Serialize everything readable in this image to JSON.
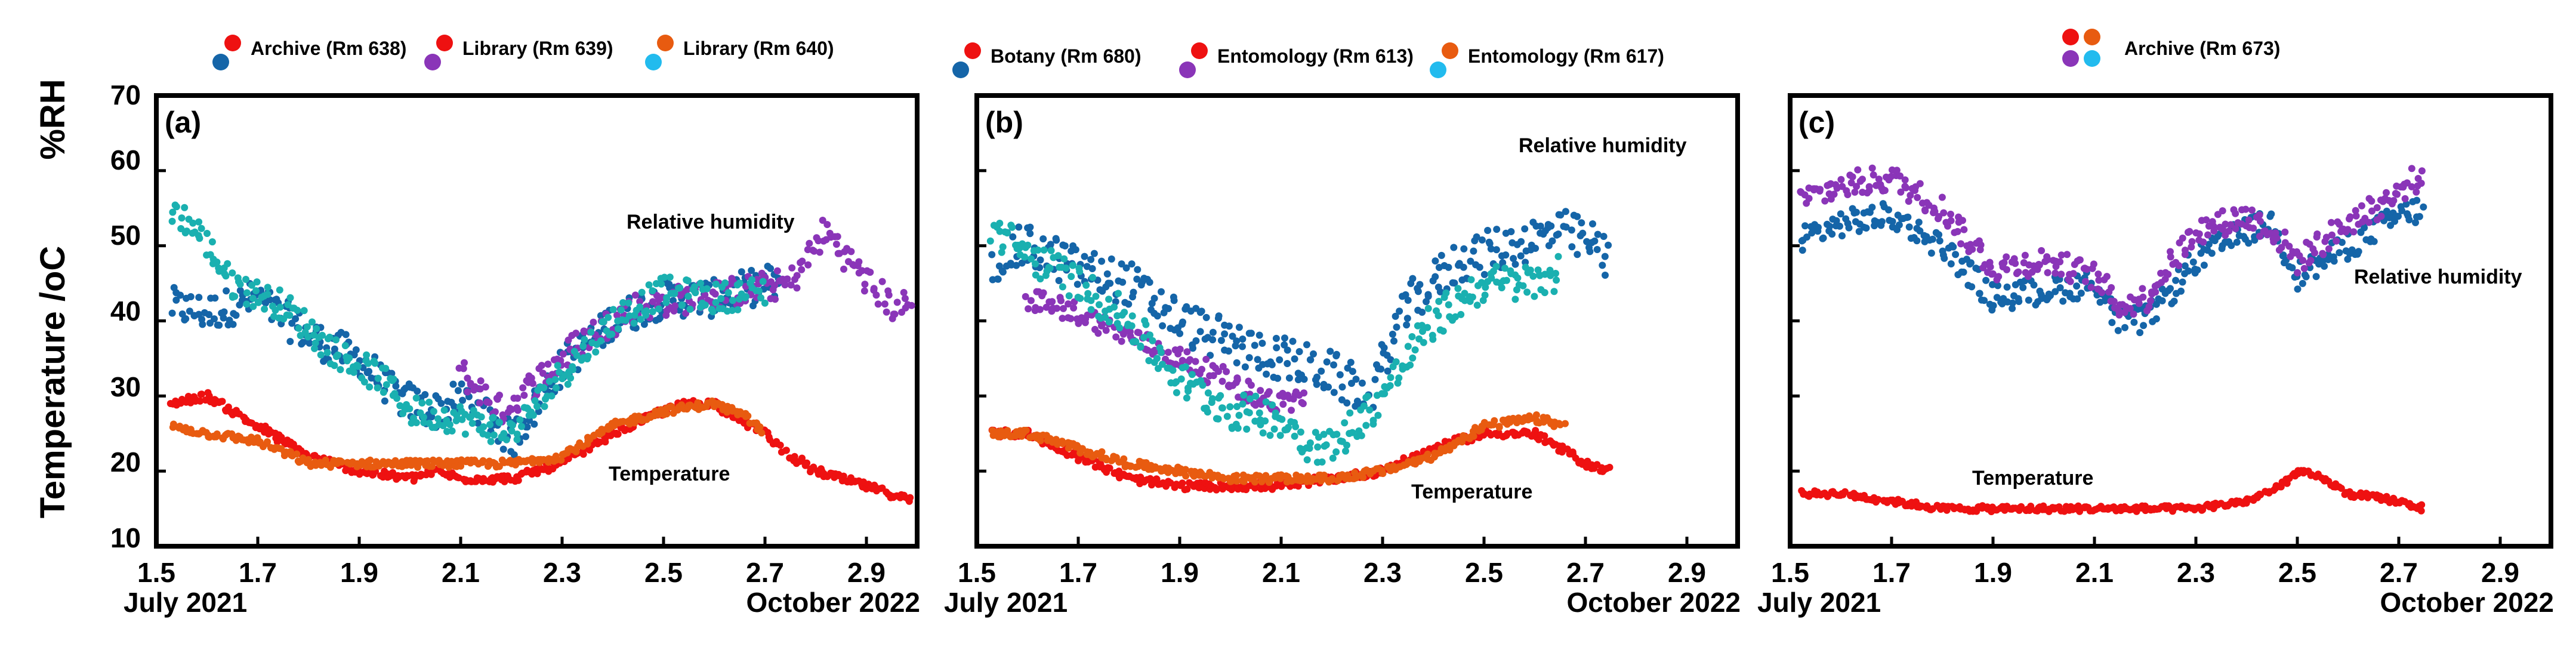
{
  "colors": {
    "red": "#ee1111",
    "orange": "#e85b10",
    "teal": "#1ab0b0",
    "cyan": "#22bbee",
    "navy": "#1565a8",
    "purple": "#8a35b8"
  },
  "y_axis": {
    "rh_title": "%RH",
    "temp_title": "Temperature /",
    "temp_unit": "oC",
    "ylim": [
      10,
      70
    ],
    "ticks": [
      "10",
      "20",
      "30",
      "40",
      "50",
      "60",
      "70"
    ]
  },
  "chart_data": [
    {
      "type": "scatter",
      "panel_label": "(a)",
      "xlim": [
        1.5,
        3.0
      ],
      "ylim": [
        10,
        70
      ],
      "x_ticks": [
        "1.5",
        "1.7",
        "1.9",
        "2.1",
        "2.3",
        "2.5",
        "2.7",
        "2.9"
      ],
      "date_start": "July  2021",
      "date_end": "October 2022",
      "legend": [
        {
          "label": "Archive (Rm 638)",
          "temp_color": "#ee1111",
          "rh_color": "#1565a8"
        },
        {
          "label": "Library (Rm 639)",
          "temp_color": "#ee1111",
          "rh_color": "#8a35b8"
        },
        {
          "label": "Library (Rm 640)",
          "temp_color": "#e85b10",
          "rh_color": "#22bbee"
        }
      ],
      "annotations": {
        "rh": "Relative humidity",
        "temp": "Temperature"
      },
      "series": [
        {
          "name": "Archive (Rm 638) RH",
          "color": "#1565a8",
          "jitter": 2.5,
          "points": [
            [
              1.53,
              42
            ],
            [
              1.6,
              41
            ],
            [
              1.7,
              43
            ],
            [
              1.8,
              38
            ],
            [
              1.9,
              35
            ],
            [
              1.97,
              30
            ],
            [
              2.05,
              28
            ],
            [
              2.12,
              30
            ],
            [
              2.2,
              24
            ],
            [
              2.3,
              34
            ],
            [
              2.4,
              40
            ],
            [
              2.5,
              43
            ],
            [
              2.6,
              43
            ],
            [
              2.7,
              45
            ],
            [
              2.73,
              45
            ]
          ]
        },
        {
          "name": "Library (Rm 639) RH",
          "color": "#8a35b8",
          "jitter": 2,
          "points": [
            [
              2.1,
              33
            ],
            [
              2.18,
              28
            ],
            [
              2.25,
              32
            ],
            [
              2.35,
              38
            ],
            [
              2.45,
              42
            ],
            [
              2.55,
              43
            ],
            [
              2.65,
              44
            ],
            [
              2.75,
              45
            ],
            [
              2.82,
              52
            ],
            [
              2.88,
              47
            ],
            [
              2.95,
              42
            ],
            [
              2.99,
              42
            ]
          ]
        },
        {
          "name": "Library (Rm 640) RH",
          "color": "#1ab0b0",
          "jitter": 2,
          "points": [
            [
              1.53,
              55
            ],
            [
              1.58,
              52
            ],
            [
              1.65,
              45
            ],
            [
              1.75,
              42
            ],
            [
              1.85,
              36
            ],
            [
              1.95,
              32
            ],
            [
              2.0,
              28
            ],
            [
              2.1,
              27
            ],
            [
              2.2,
              25
            ],
            [
              2.3,
              33
            ],
            [
              2.4,
              40
            ],
            [
              2.5,
              44
            ],
            [
              2.6,
              43
            ],
            [
              2.7,
              44
            ]
          ]
        },
        {
          "name": "Library Temperature",
          "color": "#ee1111",
          "jitter": 0.5,
          "points": [
            [
              1.53,
              29
            ],
            [
              1.6,
              30
            ],
            [
              1.65,
              28
            ],
            [
              1.7,
              26
            ],
            [
              1.8,
              22
            ],
            [
              1.9,
              20
            ],
            [
              2.0,
              19
            ],
            [
              2.05,
              20
            ],
            [
              2.1,
              19
            ],
            [
              2.2,
              19
            ],
            [
              2.3,
              21
            ],
            [
              2.4,
              25
            ],
            [
              2.5,
              28
            ],
            [
              2.55,
              29
            ],
            [
              2.6,
              29
            ],
            [
              2.7,
              25
            ],
            [
              2.75,
              22
            ],
            [
              2.8,
              20
            ],
            [
              2.9,
              18
            ],
            [
              2.99,
              16
            ]
          ]
        },
        {
          "name": "Library (Rm 640) Temperature",
          "color": "#e85b10",
          "jitter": 0.5,
          "points": [
            [
              1.53,
              26
            ],
            [
              1.6,
              25
            ],
            [
              1.7,
              24
            ],
            [
              1.8,
              21
            ],
            [
              1.9,
              21
            ],
            [
              2.0,
              21
            ],
            [
              2.1,
              21
            ],
            [
              2.2,
              21
            ],
            [
              2.3,
              22
            ],
            [
              2.4,
              26
            ],
            [
              2.5,
              28
            ],
            [
              2.6,
              29
            ],
            [
              2.67,
              27
            ],
            [
              2.7,
              25
            ]
          ]
        }
      ]
    },
    {
      "type": "scatter",
      "panel_label": "(b)",
      "xlim": [
        1.5,
        3.0
      ],
      "ylim": [
        10,
        70
      ],
      "x_ticks": [
        "1.5",
        "1.7",
        "1.9",
        "2.1",
        "2.3",
        "2.5",
        "2.7",
        "2.9"
      ],
      "date_start": "July  2021",
      "date_end": "October 2022",
      "legend": [
        {
          "label": "Botany (Rm 680)",
          "temp_color": "#ee1111",
          "rh_color": "#1565a8"
        },
        {
          "label": "Entomology (Rm 613)",
          "temp_color": "#ee1111",
          "rh_color": "#8a35b8"
        },
        {
          "label": "Entomology (Rm 617)",
          "temp_color": "#e85b10",
          "rh_color": "#22bbee"
        }
      ],
      "annotations": {
        "rh": "Relative humidity",
        "temp": "Temperature"
      },
      "series": [
        {
          "name": "Botany (Rm 680) RH",
          "color": "#1565a8",
          "jitter": 3,
          "points": [
            [
              1.53,
              48
            ],
            [
              1.6,
              50
            ],
            [
              1.7,
              47
            ],
            [
              1.8,
              45
            ],
            [
              1.9,
              40
            ],
            [
              2.0,
              37
            ],
            [
              2.1,
              35
            ],
            [
              2.2,
              33
            ],
            [
              2.27,
              30
            ],
            [
              2.35,
              42
            ],
            [
              2.45,
              48
            ],
            [
              2.55,
              50
            ],
            [
              2.65,
              52
            ],
            [
              2.72,
              50
            ],
            [
              2.75,
              48
            ]
          ]
        },
        {
          "name": "Entomology (Rm 613) RH",
          "color": "#8a35b8",
          "jitter": 1.5,
          "points": [
            [
              1.6,
              43
            ],
            [
              1.7,
              41
            ],
            [
              1.8,
              38
            ],
            [
              1.9,
              35
            ],
            [
              2.0,
              32
            ],
            [
              2.05,
              30
            ],
            [
              2.1,
              29
            ],
            [
              2.15,
              30
            ]
          ]
        },
        {
          "name": "Entomology (Rm 617) RH",
          "color": "#1ab0b0",
          "jitter": 2.5,
          "points": [
            [
              1.53,
              52
            ],
            [
              1.6,
              49
            ],
            [
              1.7,
              45
            ],
            [
              1.8,
              40
            ],
            [
              1.9,
              32
            ],
            [
              2.0,
              28
            ],
            [
              2.1,
              27
            ],
            [
              2.15,
              24
            ],
            [
              2.2,
              23
            ],
            [
              2.3,
              30
            ],
            [
              2.4,
              40
            ],
            [
              2.5,
              45
            ],
            [
              2.6,
              45
            ],
            [
              2.65,
              47
            ]
          ]
        },
        {
          "name": "Entomology (Rm 613) Temperature",
          "color": "#ee1111",
          "jitter": 0.5,
          "points": [
            [
              1.53,
              25
            ],
            [
              1.6,
              25
            ],
            [
              1.7,
              22
            ],
            [
              1.8,
              19
            ],
            [
              1.9,
              18
            ],
            [
              2.0,
              18
            ],
            [
              2.1,
              18
            ],
            [
              2.2,
              19
            ],
            [
              2.3,
              20
            ],
            [
              2.4,
              23
            ],
            [
              2.5,
              25
            ],
            [
              2.6,
              25
            ],
            [
              2.7,
              21
            ],
            [
              2.75,
              20
            ]
          ]
        },
        {
          "name": "Entomology (Rm 617) Temperature",
          "color": "#e85b10",
          "jitter": 0.5,
          "points": [
            [
              1.53,
              25
            ],
            [
              1.6,
              25
            ],
            [
              1.7,
              23
            ],
            [
              1.8,
              21
            ],
            [
              1.9,
              20
            ],
            [
              2.0,
              19
            ],
            [
              2.1,
              19
            ],
            [
              2.2,
              19
            ],
            [
              2.3,
              20
            ],
            [
              2.4,
              22
            ],
            [
              2.5,
              26
            ],
            [
              2.6,
              27
            ],
            [
              2.66,
              26
            ]
          ]
        }
      ]
    },
    {
      "type": "scatter",
      "panel_label": "(c)",
      "xlim": [
        1.5,
        3.0
      ],
      "ylim": [
        10,
        70
      ],
      "x_ticks": [
        "1.5",
        "1.7",
        "1.9",
        "2.1",
        "2.3",
        "2.5",
        "2.7",
        "2.9"
      ],
      "date_start": "July  2021",
      "date_end": "October 2022",
      "legend": [
        {
          "label": "Archive (Rm 673)",
          "temp_colors": [
            "#ee1111",
            "#e85b10"
          ],
          "rh_colors": [
            "#8a35b8",
            "#22bbee"
          ]
        }
      ],
      "annotations": {
        "rh": "Relative humidity",
        "temp": "Temperature"
      },
      "series": [
        {
          "name": "Archive (Rm 673) RH A",
          "color": "#1565a8",
          "jitter": 1.8,
          "points": [
            [
              1.52,
              51
            ],
            [
              1.6,
              53
            ],
            [
              1.7,
              54
            ],
            [
              1.8,
              50
            ],
            [
              1.9,
              43
            ],
            [
              2.0,
              44
            ],
            [
              2.1,
              45
            ],
            [
              2.15,
              40
            ],
            [
              2.2,
              40
            ],
            [
              2.3,
              48
            ],
            [
              2.4,
              52
            ],
            [
              2.45,
              53
            ],
            [
              2.5,
              46
            ],
            [
              2.6,
              50
            ],
            [
              2.7,
              54
            ],
            [
              2.75,
              55
            ]
          ]
        },
        {
          "name": "Archive (Rm 673) RH B",
          "color": "#8a35b8",
          "jitter": 1.8,
          "points": [
            [
              1.52,
              56
            ],
            [
              1.6,
              58
            ],
            [
              1.7,
              59
            ],
            [
              1.8,
              55
            ],
            [
              1.9,
              47
            ],
            [
              2.0,
              48
            ],
            [
              2.1,
              46
            ],
            [
              2.15,
              42
            ],
            [
              2.2,
              43
            ],
            [
              2.3,
              52
            ],
            [
              2.4,
              54
            ],
            [
              2.45,
              52
            ],
            [
              2.5,
              48
            ],
            [
              2.6,
              53
            ],
            [
              2.7,
              57
            ],
            [
              2.75,
              60
            ]
          ]
        },
        {
          "name": "Archive (Rm 673) Temperature",
          "color": "#ee1111",
          "jitter": 0.4,
          "points": [
            [
              1.52,
              17
            ],
            [
              1.6,
              17
            ],
            [
              1.7,
              16
            ],
            [
              1.8,
              15
            ],
            [
              1.9,
              15
            ],
            [
              2.0,
              15
            ],
            [
              2.1,
              15
            ],
            [
              2.2,
              15
            ],
            [
              2.3,
              15
            ],
            [
              2.4,
              16
            ],
            [
              2.47,
              18
            ],
            [
              2.5,
              20
            ],
            [
              2.55,
              19
            ],
            [
              2.6,
              17
            ],
            [
              2.7,
              16
            ],
            [
              2.75,
              15
            ]
          ]
        }
      ]
    }
  ]
}
